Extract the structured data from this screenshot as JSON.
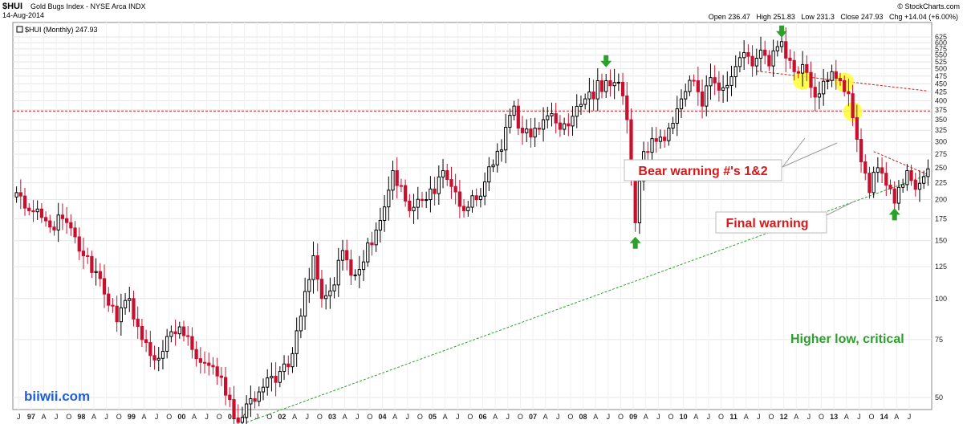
{
  "header": {
    "symbol": "$HUI",
    "name": "Gold Bugs Index - NYSE Arca INDX",
    "date": "14-Aug-2014",
    "source": "© StockCharts.com",
    "ohlc": "Open 236.47   High 251.83   Low 231.3   Close 247.93   Chg +14.04 (+6.00%)",
    "legend": "$HUI (Monthly) 247.93"
  },
  "watermark": "biiwii.com",
  "colors": {
    "up": "#000000",
    "down": "#c8102e",
    "annotation_red": "#d7191c",
    "annotation_green": "#2ca02c",
    "highlight": "#ffff33"
  },
  "annotations": {
    "bear_warning": "Bear warning #'s 1&2",
    "final_warning": "Final warning",
    "higher_low": "Higher low, critical"
  },
  "chart_data": {
    "type": "candlestick",
    "title": "$HUI Gold Bugs Index - NYSE Arca INDX",
    "series_name": "$HUI (Monthly)",
    "ylim": [
      40,
      640
    ],
    "y_scale": "log",
    "y_ticks": [
      50,
      75,
      100,
      125,
      150,
      175,
      200,
      225,
      250,
      275,
      300,
      325,
      350,
      375,
      400,
      425,
      450,
      475,
      500,
      525,
      550,
      575,
      600,
      625
    ],
    "x_tick_labels": [
      "J",
      "97",
      "A",
      "J",
      "O",
      "98",
      "A",
      "J",
      "O",
      "99",
      "A",
      "J",
      "O",
      "00",
      "A",
      "J",
      "O",
      "01",
      "A",
      "J",
      "O",
      "02",
      "A",
      "J",
      "O",
      "03",
      "A",
      "J",
      "O",
      "04",
      "A",
      "J",
      "O",
      "05",
      "A",
      "J",
      "O",
      "06",
      "A",
      "J",
      "O",
      "07",
      "A",
      "J",
      "O",
      "08",
      "A",
      "J",
      "O",
      "09",
      "A",
      "J",
      "O",
      "10",
      "A",
      "J",
      "O",
      "11",
      "A",
      "J",
      "O",
      "12",
      "A",
      "J",
      "O",
      "13",
      "A",
      "J",
      "O",
      "14",
      "A",
      "J"
    ],
    "grid": true,
    "start": "1996-06",
    "end": "2014-08",
    "anchors": [
      [
        "1996-06",
        210
      ],
      [
        "1996-09",
        185
      ],
      [
        "1997-02",
        165
      ],
      [
        "1997-05",
        175
      ],
      [
        "1997-10",
        135
      ],
      [
        "1998-02",
        115
      ],
      [
        "1998-06",
        85
      ],
      [
        "1998-09",
        100
      ],
      [
        "1998-12",
        75
      ],
      [
        "1999-03",
        65
      ],
      [
        "1999-09",
        82
      ],
      [
        "1999-12",
        70
      ],
      [
        "2000-05",
        62
      ],
      [
        "2000-11",
        42
      ],
      [
        "2001-04",
        52
      ],
      [
        "2001-09",
        60
      ],
      [
        "2001-12",
        68
      ],
      [
        "2002-05",
        135
      ],
      [
        "2002-07",
        100
      ],
      [
        "2002-10",
        110
      ],
      [
        "2002-12",
        140
      ],
      [
        "2003-03",
        118
      ],
      [
        "2003-10",
        190
      ],
      [
        "2003-12",
        245
      ],
      [
        "2004-04",
        185
      ],
      [
        "2004-08",
        200
      ],
      [
        "2004-12",
        245
      ],
      [
        "2005-05",
        185
      ],
      [
        "2005-08",
        200
      ],
      [
        "2005-12",
        255
      ],
      [
        "2006-05",
        385
      ],
      [
        "2006-06",
        330
      ],
      [
        "2006-09",
        310
      ],
      [
        "2006-12",
        350
      ],
      [
        "2007-06",
        335
      ],
      [
        "2007-10",
        405
      ],
      [
        "2008-03",
        460
      ],
      [
        "2008-06",
        455
      ],
      [
        "2008-08",
        350
      ],
      [
        "2008-10",
        170
      ],
      [
        "2008-12",
        280
      ],
      [
        "2009-06",
        330
      ],
      [
        "2009-12",
        460
      ],
      [
        "2010-02",
        385
      ],
      [
        "2010-04",
        470
      ],
      [
        "2010-08",
        445
      ],
      [
        "2010-12",
        560
      ],
      [
        "2011-02",
        510
      ],
      [
        "2011-04",
        570
      ],
      [
        "2011-06",
        510
      ],
      [
        "2011-09",
        605
      ],
      [
        "2011-12",
        490
      ],
      [
        "2012-02",
        515
      ],
      [
        "2012-05",
        410
      ],
      [
        "2012-09",
        490
      ],
      [
        "2012-11",
        460
      ],
      [
        "2013-01",
        420
      ],
      [
        "2013-02",
        355
      ],
      [
        "2013-06",
        210
      ],
      [
        "2013-08",
        250
      ],
      [
        "2013-12",
        195
      ],
      [
        "2014-03",
        245
      ],
      [
        "2014-05",
        215
      ],
      [
        "2014-07",
        235
      ],
      [
        "2014-08",
        248
      ]
    ],
    "horizontal_lines": [
      {
        "value": 372
      }
    ],
    "trendlines": [
      {
        "from": [
          "2001-01",
          42
        ],
        "to": [
          "2014-08",
          238
        ]
      },
      {
        "from": [
          "2011-03",
          492
        ],
        "to": [
          "2014-08",
          428
        ]
      },
      {
        "from": [
          "2013-07",
          280
        ],
        "to": [
          "2014-08",
          238
        ]
      }
    ],
    "markers": [
      {
        "date": "2008-03",
        "value": 520,
        "dir": "down"
      },
      {
        "date": "2011-09",
        "value": 640,
        "dir": "down"
      },
      {
        "date": "2008-10",
        "value": 150,
        "dir": "up"
      },
      {
        "date": "2013-12",
        "value": 183,
        "dir": "up"
      }
    ],
    "highlights": [
      {
        "date": "2012-02",
        "value": 462
      },
      {
        "date": "2012-12",
        "value": 455
      },
      {
        "date": "2013-02",
        "value": 370
      }
    ]
  }
}
